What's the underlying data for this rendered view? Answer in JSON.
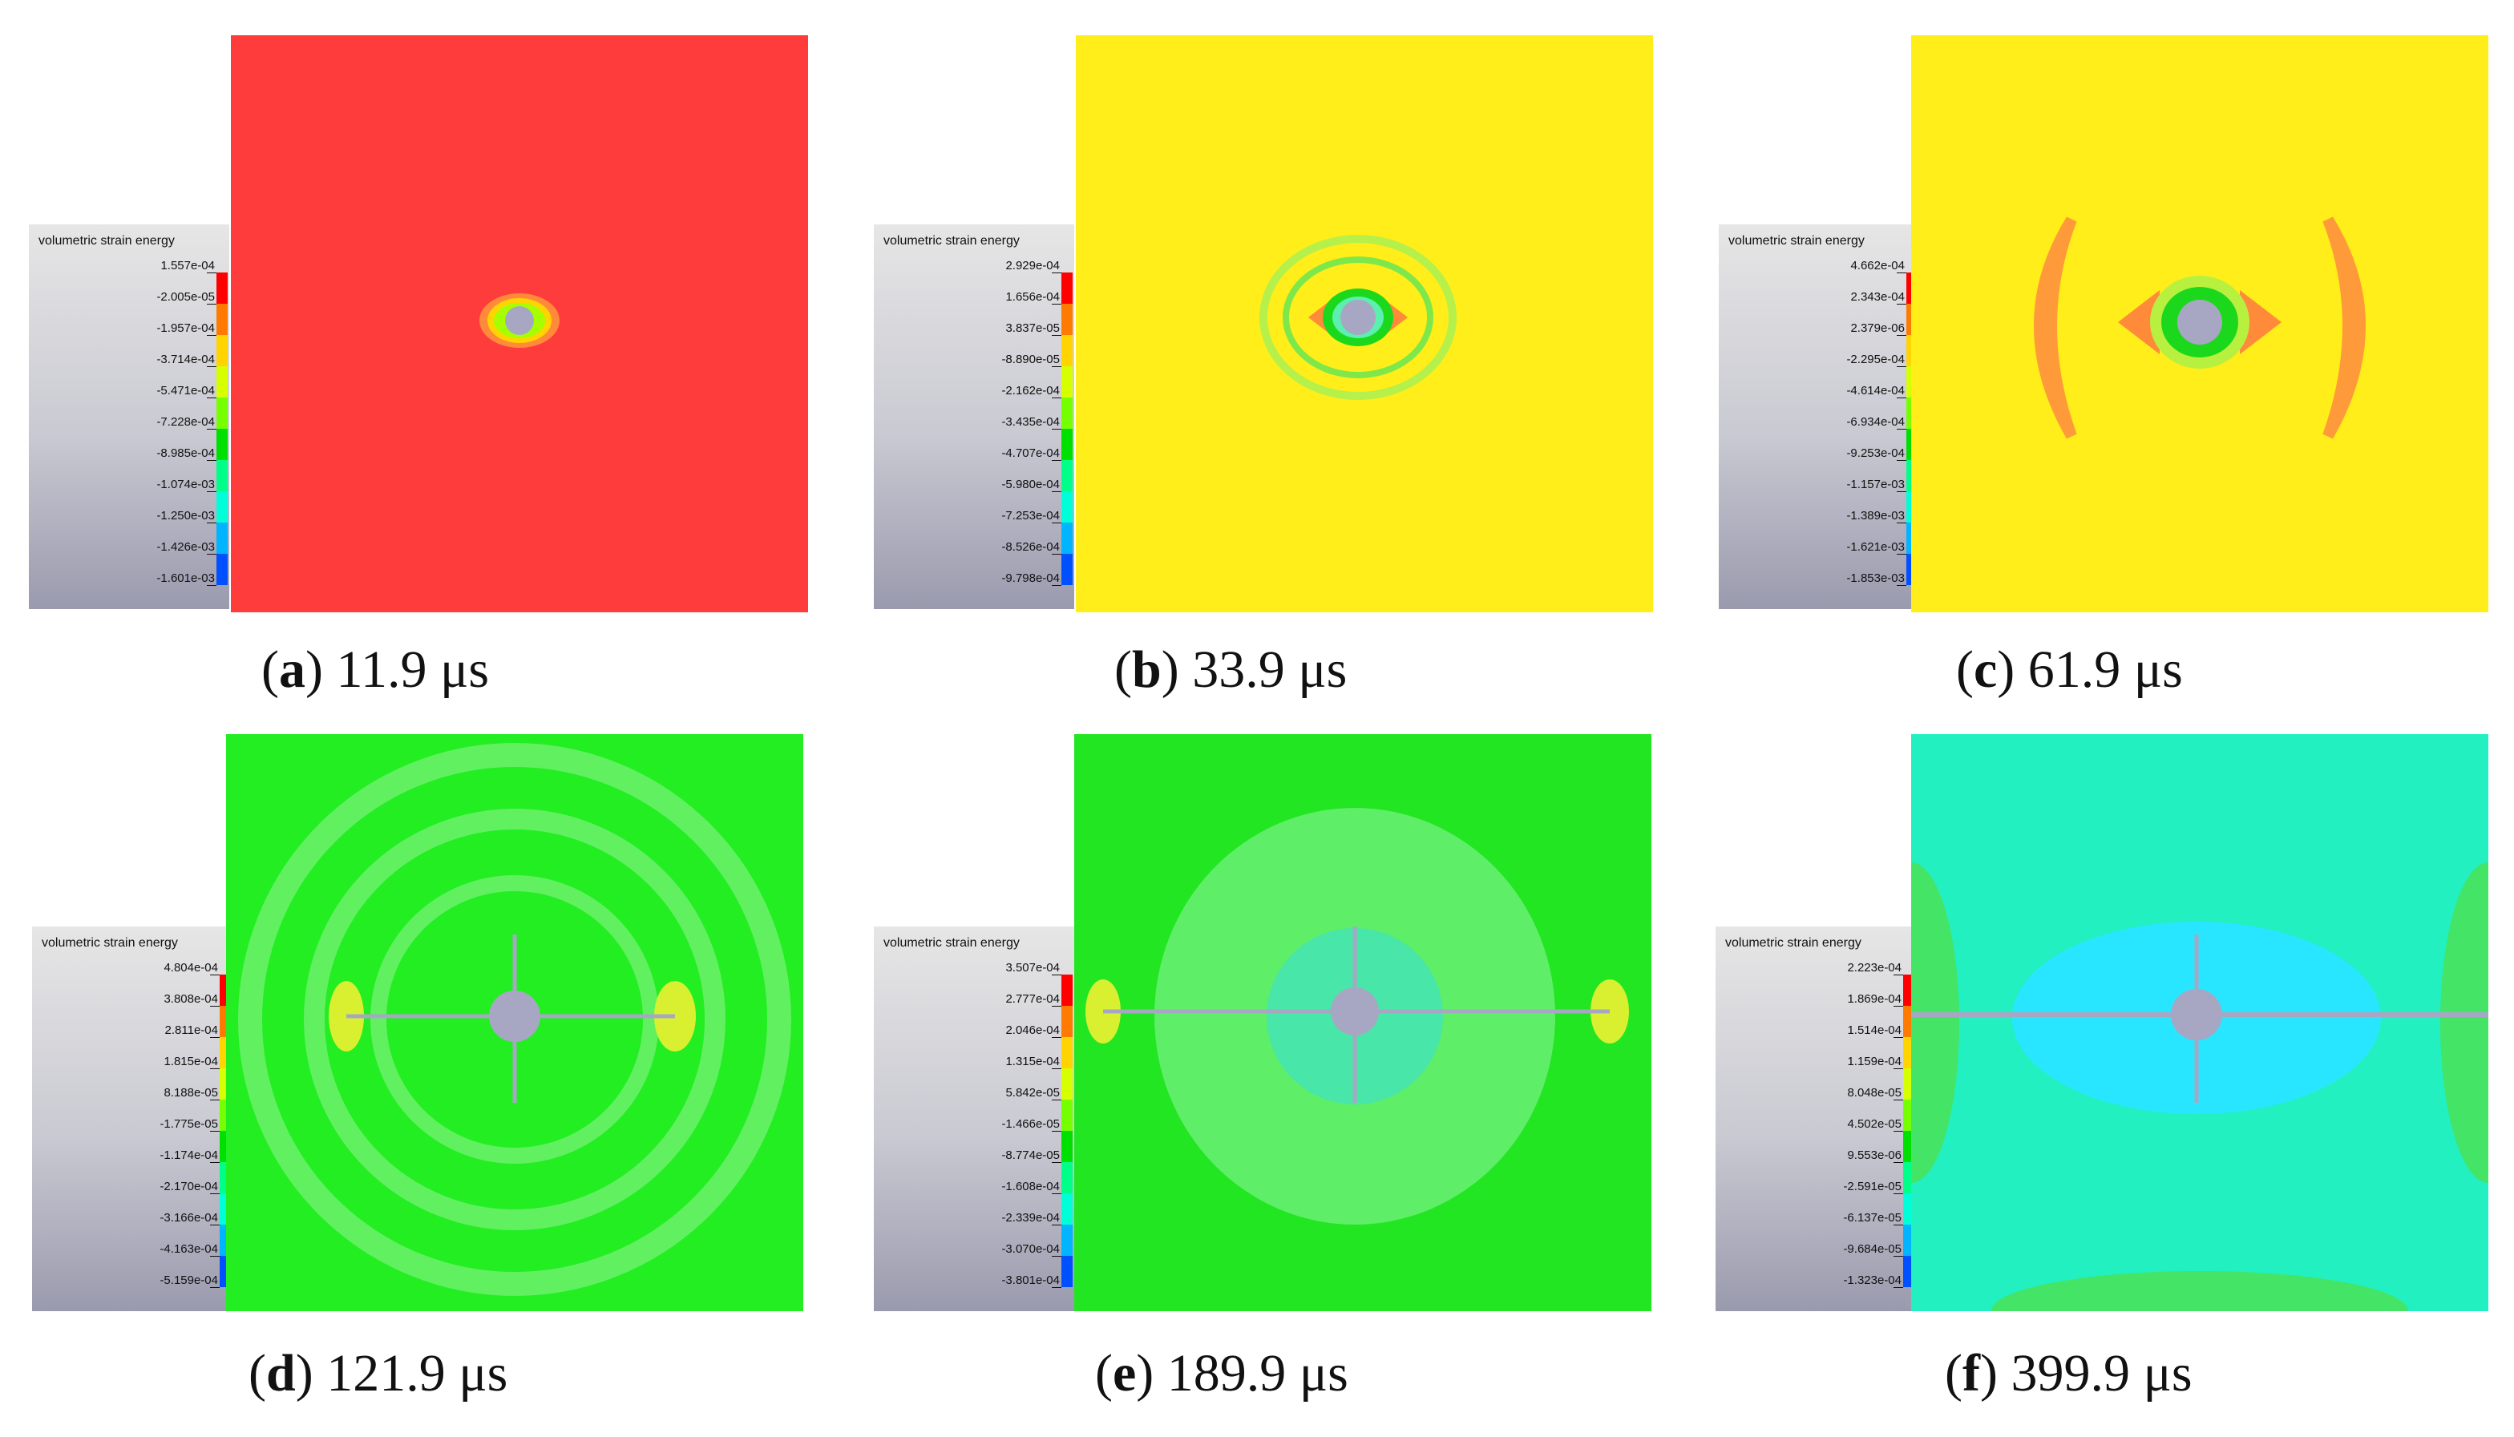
{
  "legend_title": "volumetric strain energy",
  "colorbar_colors": [
    "#ff0000",
    "#ff7a00",
    "#ffd400",
    "#d6ff00",
    "#76ff00",
    "#00e000",
    "#00ff88",
    "#00ffd8",
    "#00b4ff",
    "#0050ff",
    "#0000ff"
  ],
  "panels": [
    {
      "letter": "a",
      "time": "11.9 μs",
      "background": "#ff3c3c",
      "legend_values": [
        "1.557e-04",
        "-2.005e-05",
        "-1.957e-04",
        "-3.714e-04",
        "-5.471e-04",
        "-7.228e-04",
        "-8.985e-04",
        "-1.074e-03",
        "-1.250e-03",
        "-1.426e-03",
        "-1.601e-03"
      ]
    },
    {
      "letter": "b",
      "time": "33.9 μs",
      "background": "#ffee1a",
      "legend_values": [
        "2.929e-04",
        "1.656e-04",
        "3.837e-05",
        "-8.890e-05",
        "-2.162e-04",
        "-3.435e-04",
        "-4.707e-04",
        "-5.980e-04",
        "-7.253e-04",
        "-8.526e-04",
        "-9.798e-04"
      ]
    },
    {
      "letter": "c",
      "time": "61.9 μs",
      "background": "#ffee1a",
      "legend_values": [
        "4.662e-04",
        "2.343e-04",
        "2.379e-06",
        "-2.295e-04",
        "-4.614e-04",
        "-6.934e-04",
        "-9.253e-04",
        "-1.157e-03",
        "-1.389e-03",
        "-1.621e-03",
        "-1.853e-03"
      ]
    },
    {
      "letter": "d",
      "time": "121.9 μs",
      "background": "#22ee22",
      "legend_values": [
        "4.804e-04",
        "3.808e-04",
        "2.811e-04",
        "1.815e-04",
        "8.188e-05",
        "-1.775e-05",
        "-1.174e-04",
        "-2.170e-04",
        "-3.166e-04",
        "-4.163e-04",
        "-5.159e-04"
      ]
    },
    {
      "letter": "e",
      "time": "189.9 μs",
      "background": "#22e622",
      "legend_values": [
        "3.507e-04",
        "2.777e-04",
        "2.046e-04",
        "1.315e-04",
        "5.842e-05",
        "-1.466e-05",
        "-8.774e-05",
        "-1.608e-04",
        "-2.339e-04",
        "-3.070e-04",
        "-3.801e-04"
      ]
    },
    {
      "letter": "f",
      "time": "399.9 μs",
      "background": "#22f0c0",
      "legend_values": [
        "2.223e-04",
        "1.869e-04",
        "1.514e-04",
        "1.159e-04",
        "8.048e-05",
        "4.502e-05",
        "9.553e-06",
        "-2.591e-05",
        "-6.137e-05",
        "-9.684e-05",
        "-1.323e-04"
      ]
    }
  ]
}
